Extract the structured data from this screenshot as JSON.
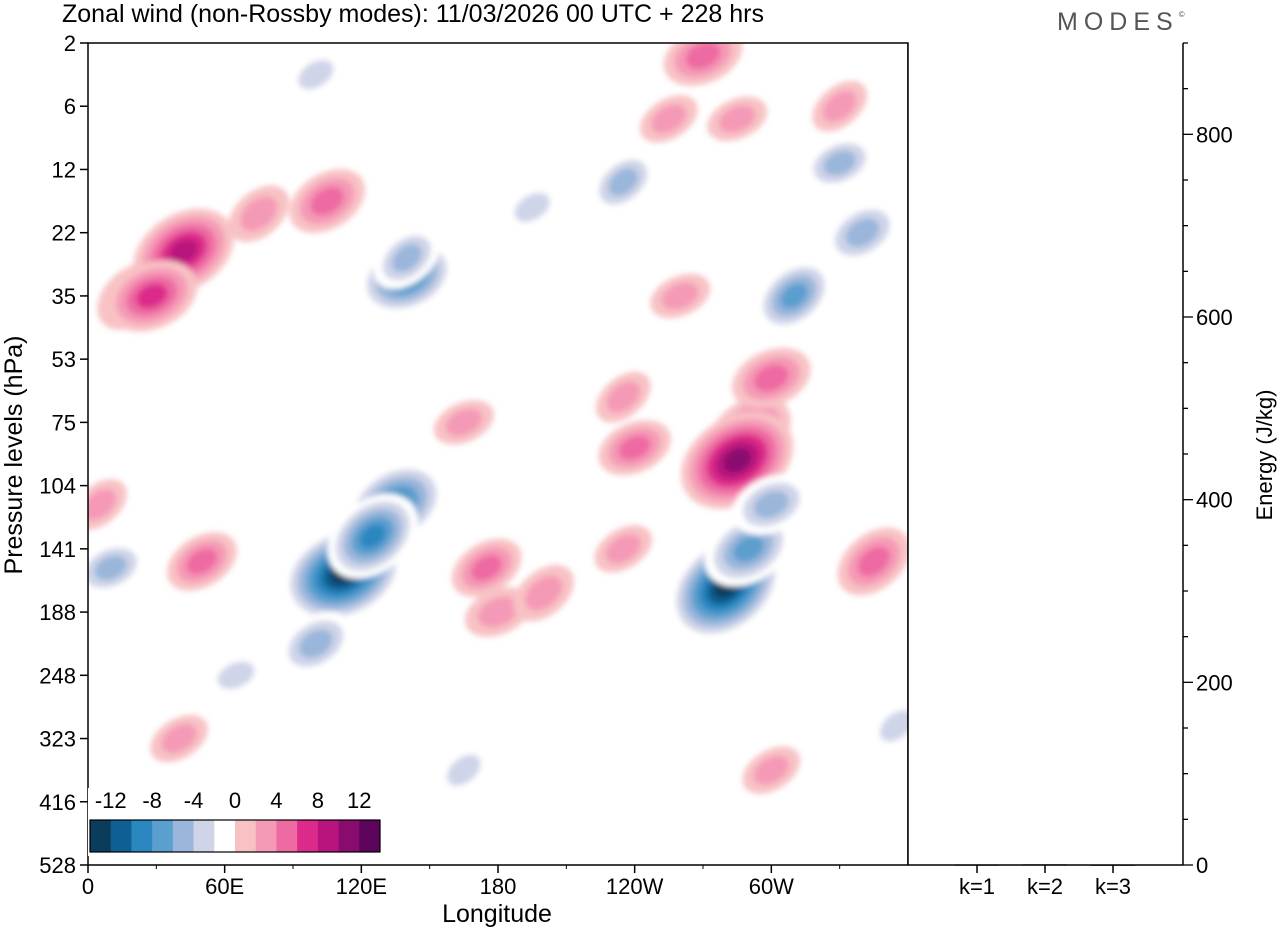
{
  "brand": {
    "name": "MODES",
    "mark": "©"
  },
  "chart_data": [
    {
      "type": "heatmap",
      "title": "Zonal wind (non-Rossby modes):  11/03/2026  00 UTC  + 228 hrs",
      "xlabel": "Longitude",
      "ylabel": "Pressure levels (hPa)",
      "x_ticks": [
        "0",
        "60E",
        "120E",
        "180",
        "120W",
        "60W"
      ],
      "x_tick_degrees_east": [
        0,
        60,
        120,
        180,
        240,
        300
      ],
      "x_range_degrees_east": [
        0,
        360
      ],
      "y_ticks": [
        "2",
        "6",
        "12",
        "22",
        "35",
        "53",
        "75",
        "104",
        "141",
        "188",
        "248",
        "323",
        "416",
        "528"
      ],
      "y_direction": "top-to-bottom",
      "colorbar": {
        "labels": [
          "-12",
          "-8",
          "-4",
          "0",
          "4",
          "8",
          "12"
        ],
        "levels": [
          -14,
          -12,
          -10,
          -8,
          -6,
          -4,
          -2,
          2,
          4,
          6,
          8,
          10,
          12,
          14
        ],
        "colors": [
          "#0c3c5c",
          "#0e6094",
          "#2a87c0",
          "#5b9fcf",
          "#9ab6da",
          "#cfd4e8",
          "#ffffff",
          "#f8c2c5",
          "#f59ab6",
          "#ee6aa2",
          "#dc2a8a",
          "#b8127c",
          "#880c6e",
          "#5c045c"
        ],
        "placement": "bottom-left inset"
      },
      "features": [
        {
          "lon": 20,
          "level": 4.0,
          "value": 6
        },
        {
          "lon": 42,
          "level": 3.3,
          "value": 10
        },
        {
          "lon": 28,
          "level": 4.0,
          "value": 8
        },
        {
          "lon": 75,
          "level": 2.7,
          "value": 4
        },
        {
          "lon": 105,
          "level": 2.5,
          "value": 6
        },
        {
          "lon": 140,
          "level": 3.7,
          "value": -9
        },
        {
          "lon": 140,
          "level": 3.4,
          "value": -5
        },
        {
          "lon": 135,
          "level": 7.3,
          "value": -10
        },
        {
          "lon": 112,
          "level": 8.4,
          "value": -13
        },
        {
          "lon": 125,
          "level": 7.8,
          "value": -9
        },
        {
          "lon": 100,
          "level": 9.5,
          "value": -6
        },
        {
          "lon": 165,
          "level": 6.0,
          "value": 3
        },
        {
          "lon": 235,
          "level": 5.6,
          "value": 3
        },
        {
          "lon": 175,
          "level": 8.3,
          "value": 5
        },
        {
          "lon": 180,
          "level": 9.0,
          "value": 4
        },
        {
          "lon": 200,
          "level": 8.7,
          "value": 4
        },
        {
          "lon": 235,
          "level": 8.0,
          "value": 3
        },
        {
          "lon": 240,
          "level": 6.4,
          "value": 5
        },
        {
          "lon": 290,
          "level": 6.2,
          "value": 8
        },
        {
          "lon": 285,
          "level": 6.6,
          "value": 12
        },
        {
          "lon": 300,
          "level": 5.3,
          "value": 6
        },
        {
          "lon": 280,
          "level": 8.6,
          "value": -13
        },
        {
          "lon": 290,
          "level": 8.0,
          "value": -8
        },
        {
          "lon": 300,
          "level": 7.3,
          "value": -6
        },
        {
          "lon": 310,
          "level": 4.0,
          "value": -7
        },
        {
          "lon": 340,
          "level": 3.0,
          "value": -6
        },
        {
          "lon": 330,
          "level": 1.9,
          "value": -5
        },
        {
          "lon": 345,
          "level": 8.2,
          "value": 6
        },
        {
          "lon": 50,
          "level": 8.2,
          "value": 5
        },
        {
          "lon": 10,
          "level": 8.3,
          "value": -5
        },
        {
          "lon": 5,
          "level": 7.3,
          "value": 3
        },
        {
          "lon": 255,
          "level": 1.2,
          "value": 3
        },
        {
          "lon": 285,
          "level": 1.2,
          "value": 3
        },
        {
          "lon": 330,
          "level": 1.0,
          "value": 3
        },
        {
          "lon": 100,
          "level": 0.5,
          "value": -3
        },
        {
          "lon": 270,
          "level": 0.2,
          "value": 6
        },
        {
          "lon": 235,
          "level": 2.2,
          "value": -5
        },
        {
          "lon": 195,
          "level": 2.6,
          "value": -3
        },
        {
          "lon": 260,
          "level": 4.0,
          "value": 3
        },
        {
          "lon": 165,
          "level": 11.5,
          "value": -3
        },
        {
          "lon": 300,
          "level": 11.5,
          "value": 3
        },
        {
          "lon": 65,
          "level": 10.0,
          "value": -3
        },
        {
          "lon": 355,
          "level": 10.8,
          "value": -3
        },
        {
          "lon": 40,
          "level": 11.0,
          "value": 3
        }
      ]
    },
    {
      "type": "bar",
      "categories": [
        "k=1",
        "k=2",
        "k=3"
      ],
      "values": [
        0.6,
        0.7,
        0.5
      ],
      "ylabel": "Energy (J/kg)",
      "y_ticks": [
        0,
        200,
        400,
        600,
        800
      ],
      "ylim": [
        0,
        900
      ]
    }
  ]
}
